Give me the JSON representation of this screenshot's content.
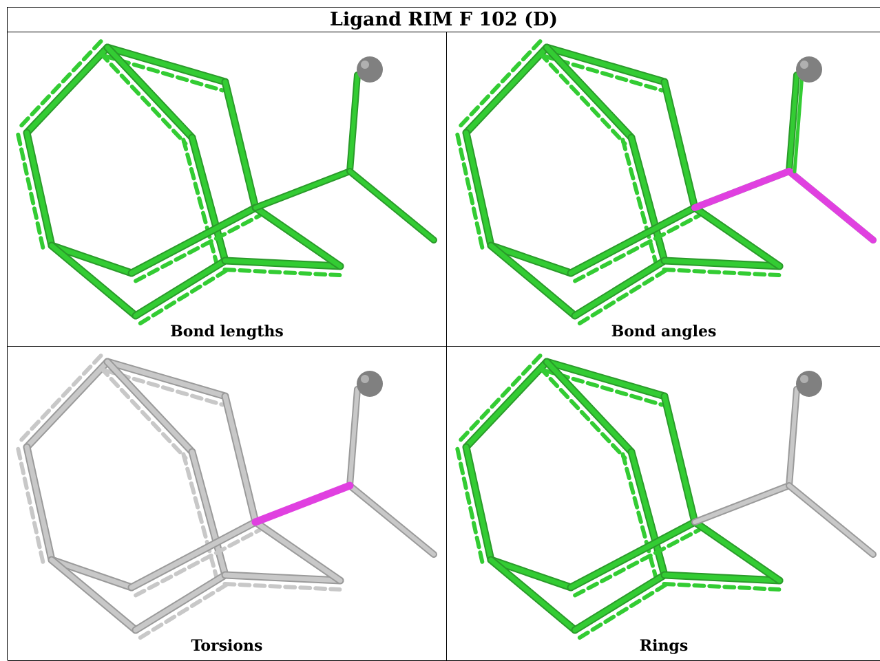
{
  "title": "Ligand RIM F 102 (D)",
  "colors": {
    "ok_bond": "#33cc33",
    "ok_bond_shade": "#2a9a2a",
    "neutral_bond": "#c8c8c8",
    "neutral_bond_shade": "#9a9a9a",
    "outlier_bond": "#e040e0",
    "atom": "#808080"
  },
  "panels": [
    {
      "id": "bond-lengths",
      "caption": "Bond lengths",
      "ring": "green",
      "chain": "green",
      "highlight": "none",
      "highlight_icon": "none"
    },
    {
      "id": "bond-angles",
      "caption": "Bond angles",
      "ring": "green",
      "chain": "green",
      "highlight": "angle",
      "highlight_icon": "magenta-bond"
    },
    {
      "id": "torsions",
      "caption": "Torsions",
      "ring": "grey",
      "chain": "grey",
      "highlight": "torsion",
      "highlight_icon": "magenta-bond"
    },
    {
      "id": "rings",
      "caption": "Rings",
      "ring": "green",
      "chain": "grey",
      "highlight": "none",
      "highlight_icon": "none"
    }
  ]
}
